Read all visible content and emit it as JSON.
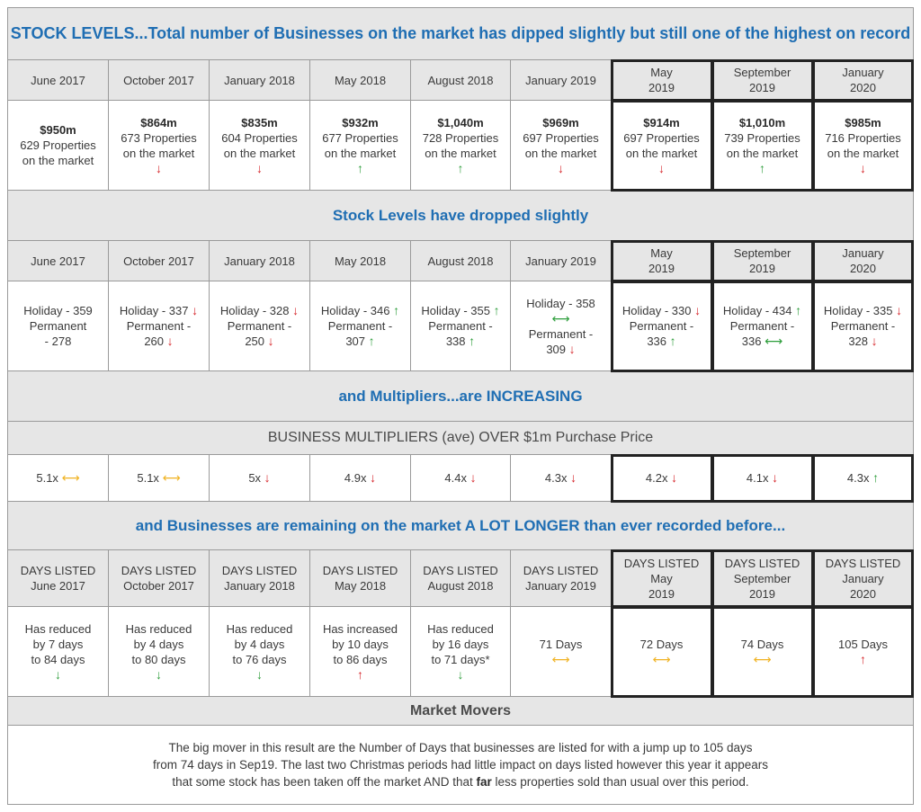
{
  "titles": {
    "stock_levels": "STOCK LEVELS...Total number of Businesses on the market has dipped slightly but still one of the highest on record",
    "stock_dropped": "Stock Levels have dropped slightly",
    "multipliers": "and Multipliers...are INCREASING",
    "multipliers_sub": "BUSINESS MULTIPLIERS (ave) OVER $1m Purchase Price",
    "days": "and Businesses are remaining on the market A LOT LONGER than ever recorded before...",
    "movers": "Market Movers"
  },
  "periods": [
    {
      "l1": "June 2017",
      "l2": ""
    },
    {
      "l1": "October 2017",
      "l2": ""
    },
    {
      "l1": "January 2018",
      "l2": ""
    },
    {
      "l1": "May 2018",
      "l2": ""
    },
    {
      "l1": "August 2018",
      "l2": ""
    },
    {
      "l1": "January 2019",
      "l2": ""
    },
    {
      "l1": "May",
      "l2": "2019"
    },
    {
      "l1": "September",
      "l2": "2019"
    },
    {
      "l1": "January",
      "l2": "2020"
    }
  ],
  "stock_values": [
    {
      "value": "$950m",
      "line1": "629 Properties",
      "line2": "on the market",
      "arrow": ""
    },
    {
      "value": "$864m",
      "line1": "673 Properties",
      "line2": "on the market",
      "arrow": "down"
    },
    {
      "value": "$835m",
      "line1": "604 Properties",
      "line2": "on the market",
      "arrow": "down"
    },
    {
      "value": "$932m",
      "line1": "677 Properties",
      "line2": "on the market",
      "arrow": "up"
    },
    {
      "value": "$1,040m",
      "line1": "728 Properties",
      "line2": "on the market",
      "arrow": "up"
    },
    {
      "value": "$969m",
      "line1": "697 Properties",
      "line2": "on the market",
      "arrow": "down"
    },
    {
      "value": "$914m",
      "line1": "697 Properties",
      "line2": "on the market",
      "arrow": "down"
    },
    {
      "value": "$1,010m",
      "line1": "739 Properties",
      "line2": "on the market",
      "arrow": "up"
    },
    {
      "value": "$985m",
      "line1": "716 Properties",
      "line2": "on the market",
      "arrow": "down"
    }
  ],
  "holiday_permanent": [
    {
      "layout": "a",
      "h": "Holiday - 359",
      "p1": "Permanent",
      "p2": "- 278"
    },
    {
      "layout": "b",
      "h": "Holiday - 337",
      "ha": "down",
      "p1": "Permanent -",
      "p2": "260",
      "pa": "down"
    },
    {
      "layout": "b",
      "h": "Holiday - 328",
      "ha": "down",
      "p1": "Permanent -",
      "p2": "250",
      "pa": "down"
    },
    {
      "layout": "b",
      "h": "Holiday - 346",
      "ha": "up",
      "p1": "Permanent -",
      "p2": "307",
      "pa": "up"
    },
    {
      "layout": "b",
      "h": "Holiday - 355",
      "ha": "up",
      "p1": "Permanent -",
      "p2": "338",
      "pa": "up"
    },
    {
      "layout": "c",
      "h": "Holiday - 358",
      "ha": "flatg",
      "p1": "Permanent -",
      "p2": "309",
      "pa": "down"
    },
    {
      "layout": "b",
      "h": "Holiday - 330",
      "ha": "down",
      "p1": "Permanent -",
      "p2": "336",
      "pa": "up"
    },
    {
      "layout": "b",
      "h": "Holiday - 434",
      "ha": "up",
      "p1": "Permanent -",
      "p2": "336",
      "pa": "flatg"
    },
    {
      "layout": "b",
      "h": "Holiday - 335",
      "ha": "down",
      "p1": "Permanent -",
      "p2": "328",
      "pa": "down"
    }
  ],
  "multipliers": [
    {
      "value": "5.1x",
      "arrow": "flat"
    },
    {
      "value": "5.1x",
      "arrow": "flat"
    },
    {
      "value": "5x",
      "arrow": "down"
    },
    {
      "value": "4.9x",
      "arrow": "down"
    },
    {
      "value": "4.4x",
      "arrow": "down"
    },
    {
      "value": "4.3x",
      "arrow": "down"
    },
    {
      "value": "4.2x",
      "arrow": "down"
    },
    {
      "value": "4.1x",
      "arrow": "down"
    },
    {
      "value": "4.3x",
      "arrow": "up"
    }
  ],
  "days_headers": [
    {
      "l1": "DAYS LISTED",
      "l2": "June 2017",
      "l3": ""
    },
    {
      "l1": "DAYS LISTED",
      "l2": "October 2017",
      "l3": ""
    },
    {
      "l1": "DAYS LISTED",
      "l2": "January 2018",
      "l3": ""
    },
    {
      "l1": "DAYS LISTED",
      "l2": "May 2018",
      "l3": ""
    },
    {
      "l1": "DAYS LISTED",
      "l2": "August 2018",
      "l3": ""
    },
    {
      "l1": "DAYS LISTED",
      "l2": "January 2019",
      "l3": ""
    },
    {
      "l1": "DAYS LISTED",
      "l2": "May",
      "l3": "2019"
    },
    {
      "l1": "DAYS LISTED",
      "l2": "September",
      "l3": "2019"
    },
    {
      "l1": "DAYS LISTED",
      "l2": "January",
      "l3": "2020"
    }
  ],
  "days_values": [
    {
      "l1": "Has reduced",
      "l2": "by 7 days",
      "l3": "to 84 days",
      "arrow": "downg"
    },
    {
      "l1": "Has reduced",
      "l2": "by 4 days",
      "l3": "to 80 days",
      "arrow": "downg"
    },
    {
      "l1": "Has reduced",
      "l2": "by 4 days",
      "l3": "to 76 days",
      "arrow": "downg"
    },
    {
      "l1": "Has increased",
      "l2": "by 10 days",
      "l3": "to 86 days",
      "arrow": "up_red"
    },
    {
      "l1": "Has reduced",
      "l2": "by 16 days",
      "l3": "to 71 days*",
      "arrow": "downg"
    },
    {
      "l1": "71 Days",
      "l2": "",
      "l3": "",
      "arrow": "flat"
    },
    {
      "l1": "72 Days",
      "l2": "",
      "l3": "",
      "arrow": "flat"
    },
    {
      "l1": "74 Days",
      "l2": "",
      "l3": "",
      "arrow": "flat"
    },
    {
      "l1": "105 Days",
      "l2": "",
      "l3": "",
      "arrow": "up_red"
    }
  ],
  "paragraph": {
    "line1": "The big mover in this result are the Number of Days that businesses are listed for with a jump up to 105 days",
    "line2": "from 74 days in Sep19. The last two Christmas periods had little impact on days listed however this year it appears",
    "line3a": "that some stock has been taken off the market AND that ",
    "line3b": "far",
    "line3c": " less properties sold than usual over this period."
  },
  "glyphs": {
    "up": "↑",
    "down": "↓",
    "flat": "⟷"
  },
  "colors": {
    "title_blue": "#1f6eb3",
    "band_grey": "#e6e6e6",
    "arrow_up": "#2e9e3c",
    "arrow_down": "#d6262b",
    "arrow_flat": "#f0b323"
  }
}
